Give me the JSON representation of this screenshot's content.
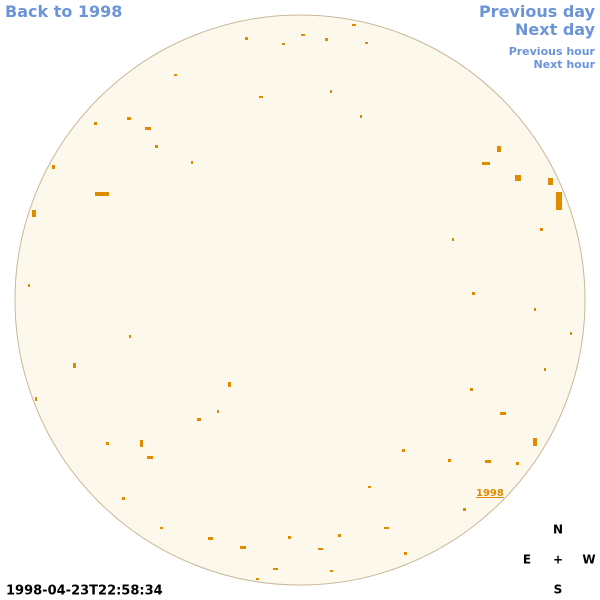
{
  "nav": {
    "back": "Back to 1998",
    "previous_day": "Previous day",
    "next_day": "Next day",
    "previous_hour": "Previous hour",
    "next_hour": "Next hour"
  },
  "disk": {
    "region_label": "1998"
  },
  "compass": {
    "north": "N",
    "east": "E",
    "center": "+",
    "west": "W",
    "south": "S"
  },
  "timestamp": "1998-04-23T22:58:34"
}
